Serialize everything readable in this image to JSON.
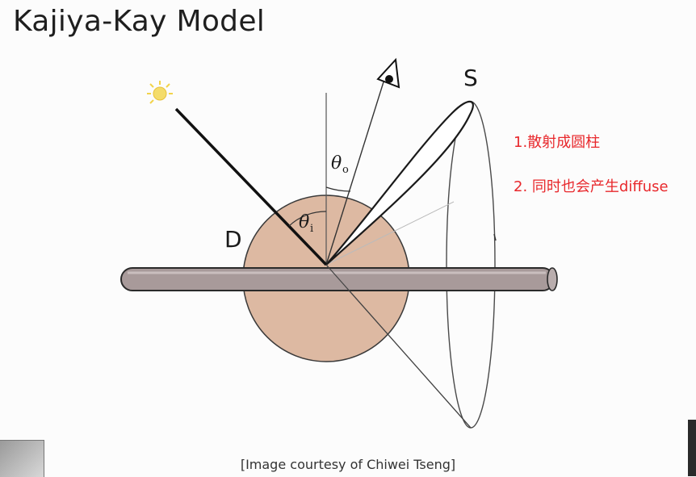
{
  "title": "Kajiya-Kay Model",
  "labels": {
    "specular": "S",
    "diffuse": "D",
    "theta_i": "θ",
    "theta_i_sub": "i",
    "theta_o": "θ",
    "theta_o_sub": "o"
  },
  "notes": [
    "1.散射成圆柱",
    "2. 同时也会产生diffuse"
  ],
  "caption": "[Image courtesy of Chiwei Tseng]",
  "colors": {
    "diffuse_disk": "#ddb9a2",
    "hair_fiber": "#a89a9a",
    "notes": "#e8282c",
    "sun": "#f2d34a"
  },
  "icons": {
    "light_source": "sun-icon",
    "viewer": "eye-icon"
  }
}
